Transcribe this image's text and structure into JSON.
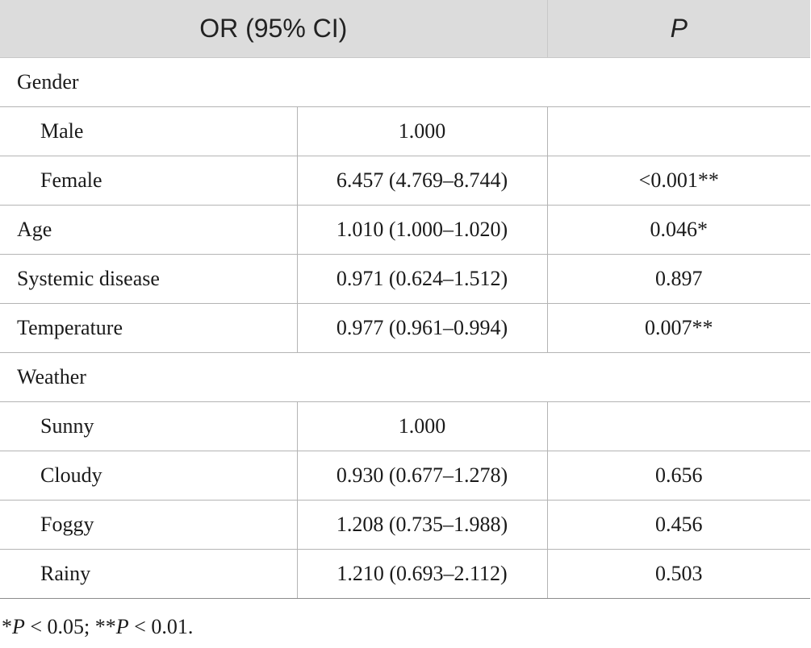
{
  "header": {
    "col_or": "OR (95% CI)",
    "col_p": "P"
  },
  "rows": [
    {
      "label": "Gender",
      "or": "",
      "p": ""
    },
    {
      "label": "Male",
      "or": "1.000",
      "p": ""
    },
    {
      "label": "Female",
      "or": "6.457 (4.769–8.744)",
      "p": "<0.001**"
    },
    {
      "label": "Age",
      "or": "1.010 (1.000–1.020)",
      "p": "0.046*"
    },
    {
      "label": "Systemic disease",
      "or": "0.971 (0.624–1.512)",
      "p": "0.897"
    },
    {
      "label": "Temperature",
      "or": "0.977 (0.961–0.994)",
      "p": "0.007**"
    },
    {
      "label": "Weather",
      "or": "",
      "p": ""
    },
    {
      "label": "Sunny",
      "or": "1.000",
      "p": ""
    },
    {
      "label": "Cloudy",
      "or": "0.930 (0.677–1.278)",
      "p": "0.656"
    },
    {
      "label": "Foggy",
      "or": "1.208 (0.735–1.988)",
      "p": "0.456"
    },
    {
      "label": "Rainy",
      "or": "1.210 (0.693–2.112)",
      "p": "0.503"
    }
  ],
  "footnote": {
    "star1": "*",
    "p1": "P",
    "rest1": " < 0.05; **",
    "p2": "P",
    "rest2": " < 0.01."
  }
}
